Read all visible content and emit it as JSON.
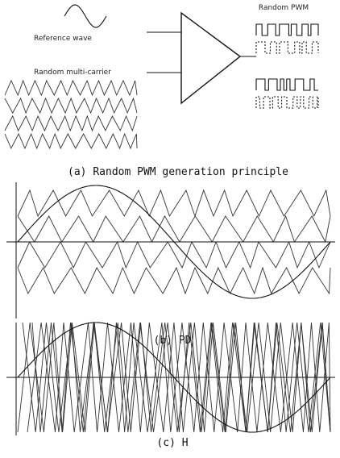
{
  "panel_a": {
    "reference_label": "Reference wave",
    "carrier_label": "Random multi-carrier",
    "output_label": "Random PWM",
    "caption": "(a) Random PWM generation principle"
  },
  "panel_b": {
    "caption": "(b) PD"
  },
  "panel_c": {
    "caption": "(c) H"
  }
}
